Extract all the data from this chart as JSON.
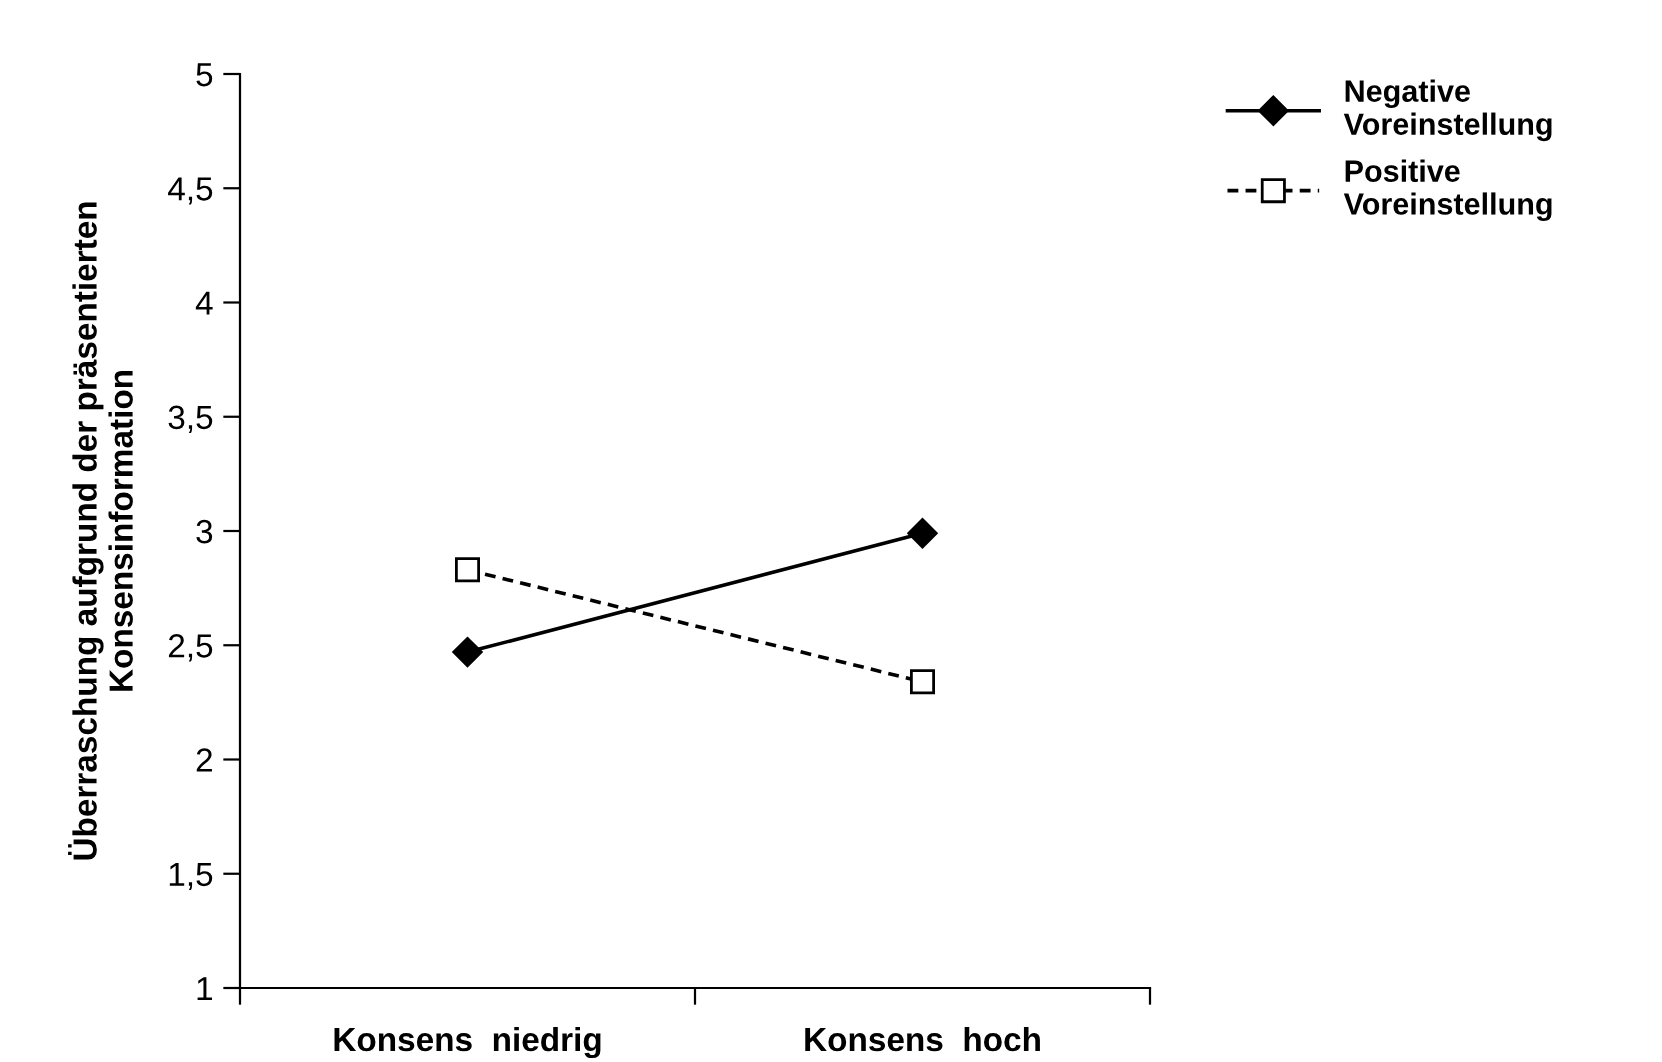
{
  "chart_data": {
    "type": "line",
    "ylabel": "Überraschung aufgrund der präsentierten\nKonsensinformation",
    "categories": [
      "Konsens  niedrig",
      "Konsens  hoch"
    ],
    "series": [
      {
        "name": "Negative\nVoreinstellung",
        "color": "#000000",
        "values": [
          2.47,
          2.99
        ],
        "marker": "diamond",
        "line_style": "solid"
      },
      {
        "name": "Positive\nVoreinstellung",
        "color": "#000000",
        "values": [
          2.83,
          2.34
        ],
        "marker": "square",
        "line_style": "dashed"
      }
    ],
    "ylim": [
      1,
      5
    ],
    "yticks": [
      1,
      {
        "value": 1.5,
        "label": "1,5"
      },
      2,
      {
        "value": 2.5,
        "label": "2,5"
      },
      3,
      {
        "value": 3.5,
        "label": "3,5"
      },
      4,
      {
        "value": 4.5,
        "label": "4,5"
      },
      5
    ],
    "grid": false,
    "legend": "top right"
  }
}
